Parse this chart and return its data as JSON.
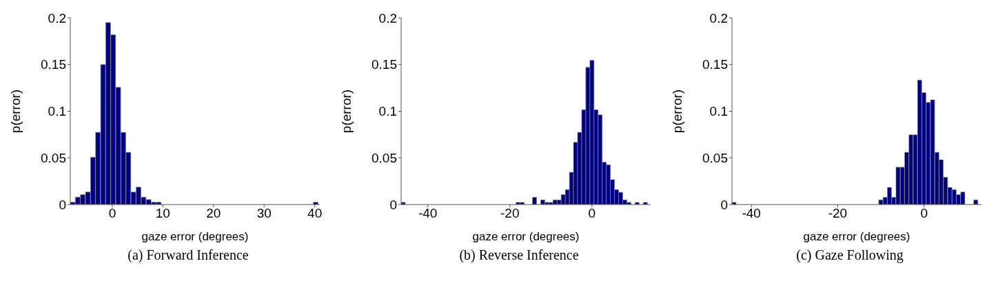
{
  "chart_data": [
    {
      "type": "histogram",
      "title": "(a) Forward Inference",
      "xlabel": "gaze error (degrees)",
      "ylabel": "p(error)",
      "color": "#000080",
      "xlim": [
        -8.3,
        41
      ],
      "xticks": [
        0,
        10,
        20,
        30,
        40
      ],
      "ylim": [
        0,
        0.2
      ],
      "yticks": [
        0,
        0.05,
        0.1,
        0.15,
        0.2
      ],
      "bins": [
        -8.3,
        -7.3,
        -6.3,
        -5.3,
        -4.3,
        -3.3,
        -2.3,
        -1.3,
        -0.3,
        0.7,
        1.7,
        2.7,
        3.7,
        4.7,
        5.7,
        6.7,
        7.7,
        8.7,
        9.7,
        10.7,
        11.7,
        12.7,
        13.7,
        14.7,
        15.7,
        16.7,
        17.7,
        18.7,
        19.7,
        20.7,
        21.7,
        22.7,
        23.7,
        24.7,
        25.7,
        26.7,
        27.7,
        28.7,
        29.7,
        30.7,
        31.7,
        32.7,
        33.7,
        34.7,
        35.7,
        36.7,
        37.7,
        38.7,
        39.7,
        40.7
      ],
      "values": [
        0.0025,
        0.008,
        0.0106,
        0.0134,
        0.0507,
        0.0774,
        0.15,
        0.195,
        0.182,
        0.1256,
        0.0774,
        0.056,
        0.0134,
        0.0187,
        0.008,
        0.0053,
        0.0025,
        0.0025,
        0,
        0,
        0,
        0,
        0,
        0,
        0,
        0,
        0,
        0,
        0,
        0,
        0,
        0,
        0,
        0,
        0,
        0,
        0,
        0,
        0,
        0,
        0,
        0,
        0,
        0,
        0,
        0,
        0,
        0,
        0.0025
      ]
    },
    {
      "type": "histogram",
      "title": "(b) Reverse Inference",
      "xlabel": "gaze error (degrees)",
      "ylabel": "p(error)",
      "color": "#000080",
      "xlim": [
        -46.5,
        14.3
      ],
      "xticks": [
        -40,
        -20,
        0
      ],
      "ylim": [
        0,
        0.2
      ],
      "yticks": [
        0,
        0.05,
        0.1,
        0.15,
        0.2
      ],
      "bins": [
        -46.5,
        -45.5,
        -44.5,
        -43.5,
        -42.5,
        -41.5,
        -40.5,
        -39.5,
        -38.5,
        -37.5,
        -36.5,
        -35.5,
        -34.5,
        -33.5,
        -32.5,
        -31.5,
        -30.5,
        -29.5,
        -28.5,
        -27.5,
        -26.5,
        -25.5,
        -24.5,
        -23.5,
        -22.5,
        -21.5,
        -20.5,
        -19.5,
        -18.5,
        -17.5,
        -16.5,
        -15.5,
        -14.5,
        -13.5,
        -12.5,
        -11.5,
        -10.5,
        -9.5,
        -8.5,
        -7.5,
        -6.5,
        -5.5,
        -4.5,
        -3.5,
        -2.5,
        -1.5,
        -0.5,
        0.5,
        1.5,
        2.5,
        3.5,
        4.5,
        5.5,
        6.5,
        7.5,
        8.5,
        9.5,
        10.5,
        11.5,
        12.5,
        13.5
      ],
      "values": [
        0.0023,
        0,
        0,
        0,
        0,
        0,
        0,
        0,
        0,
        0,
        0,
        0,
        0,
        0,
        0,
        0,
        0,
        0,
        0,
        0,
        0,
        0,
        0,
        0,
        0,
        0,
        0,
        0,
        0.0023,
        0.0023,
        0,
        0,
        0.0078,
        0,
        0.005,
        0.0023,
        0.0023,
        0.005,
        0.005,
        0.0106,
        0.016,
        0.0346,
        0.0668,
        0.0774,
        0.1016,
        0.147,
        0.1546,
        0.1016,
        0.0961,
        0.0454,
        0.0426,
        0.0267,
        0.016,
        0.0131,
        0.005,
        0.0023,
        0,
        0.0023,
        0,
        0.0023
      ]
    },
    {
      "type": "histogram",
      "title": "(c) Gaze Following",
      "xlabel": "gaze error (degrees)",
      "ylabel": "p(error)",
      "color": "#000080",
      "xlim": [
        -44.5,
        13.3
      ],
      "xticks": [
        -40,
        -20,
        0
      ],
      "ylim": [
        0,
        0.2
      ],
      "yticks": [
        0,
        0.05,
        0.1,
        0.15,
        0.2
      ],
      "bins": [
        -44.5,
        -43.5,
        -42.5,
        -41.5,
        -40.5,
        -39.5,
        -38.5,
        -37.5,
        -36.5,
        -35.5,
        -34.5,
        -33.5,
        -32.5,
        -31.5,
        -30.5,
        -29.5,
        -28.5,
        -27.5,
        -26.5,
        -25.5,
        -24.5,
        -23.5,
        -22.5,
        -21.5,
        -20.5,
        -19.5,
        -18.5,
        -17.5,
        -16.5,
        -15.5,
        -14.5,
        -13.5,
        -12.5,
        -11.5,
        -10.5,
        -9.5,
        -8.5,
        -7.5,
        -6.5,
        -5.5,
        -4.5,
        -3.5,
        -2.5,
        -1.5,
        -0.5,
        0.5,
        1.5,
        2.5,
        3.5,
        4.5,
        5.5,
        6.5,
        7.5,
        8.5,
        9.5,
        10.5,
        11.5,
        12.5
      ],
      "values": [
        0.0023,
        0,
        0,
        0,
        0,
        0,
        0,
        0,
        0,
        0,
        0,
        0,
        0,
        0,
        0,
        0,
        0,
        0,
        0,
        0,
        0,
        0,
        0,
        0,
        0,
        0,
        0,
        0,
        0,
        0,
        0,
        0,
        0,
        0,
        0.005,
        0.0078,
        0.0184,
        0.0078,
        0.04,
        0.04,
        0.056,
        0.0747,
        0.0747,
        0.1334,
        0.12,
        0.1094,
        0.1122,
        0.056,
        0.048,
        0.0293,
        0.0184,
        0.016,
        0.0106,
        0.0134,
        0,
        0,
        0.005
      ]
    }
  ]
}
